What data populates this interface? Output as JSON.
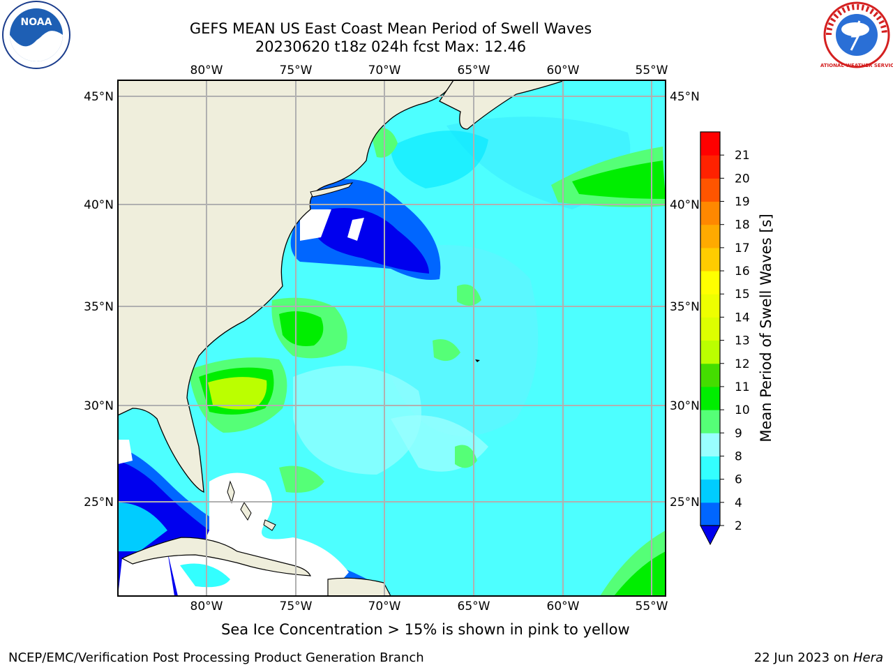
{
  "title": {
    "line1": "GEFS MEAN US East Coast Mean Period of Swell Waves",
    "line2": "20230620 t18z 024h fcst   Max: 12.46"
  },
  "map": {
    "lon_ticks": [
      "80°W",
      "75°W",
      "70°W",
      "65°W",
      "60°W",
      "55°W"
    ],
    "lat_ticks": [
      "45°N",
      "40°N",
      "35°N",
      "30°N",
      "25°N"
    ],
    "land_color": "#efeedc",
    "grid_color": "#b0b0b0",
    "ocean_base_color": "#4dffff"
  },
  "colorbar": {
    "title": "Mean Period of Swell Waves [s]",
    "levels": [
      "2",
      "4",
      "6",
      "8",
      "9",
      "10",
      "11",
      "12",
      "13",
      "14",
      "15",
      "16",
      "17",
      "18",
      "19",
      "20",
      "21"
    ],
    "colors": [
      "#0066ff",
      "#00ccff",
      "#33ffff",
      "#99ffff",
      "#55ff77",
      "#00ee00",
      "#44dd00",
      "#bbff00",
      "#ddff00",
      "#eeff00",
      "#ffff00",
      "#ffcc00",
      "#ffaa00",
      "#ff8800",
      "#ff5500",
      "#ff2200",
      "#ff0000"
    ],
    "under_color": "#0000ee"
  },
  "notes": {
    "ice": "Sea Ice Concentration > 15% is shown in pink to yellow"
  },
  "footer": {
    "left": "NCEP/EMC/Verification Post Processing Product Generation Branch",
    "right_date": "22 Jun 2023 on ",
    "right_host": "Hera"
  },
  "logos": {
    "noaa_text": "NOAA",
    "nws_text": "NATIONAL WEATHER SERVICE"
  }
}
